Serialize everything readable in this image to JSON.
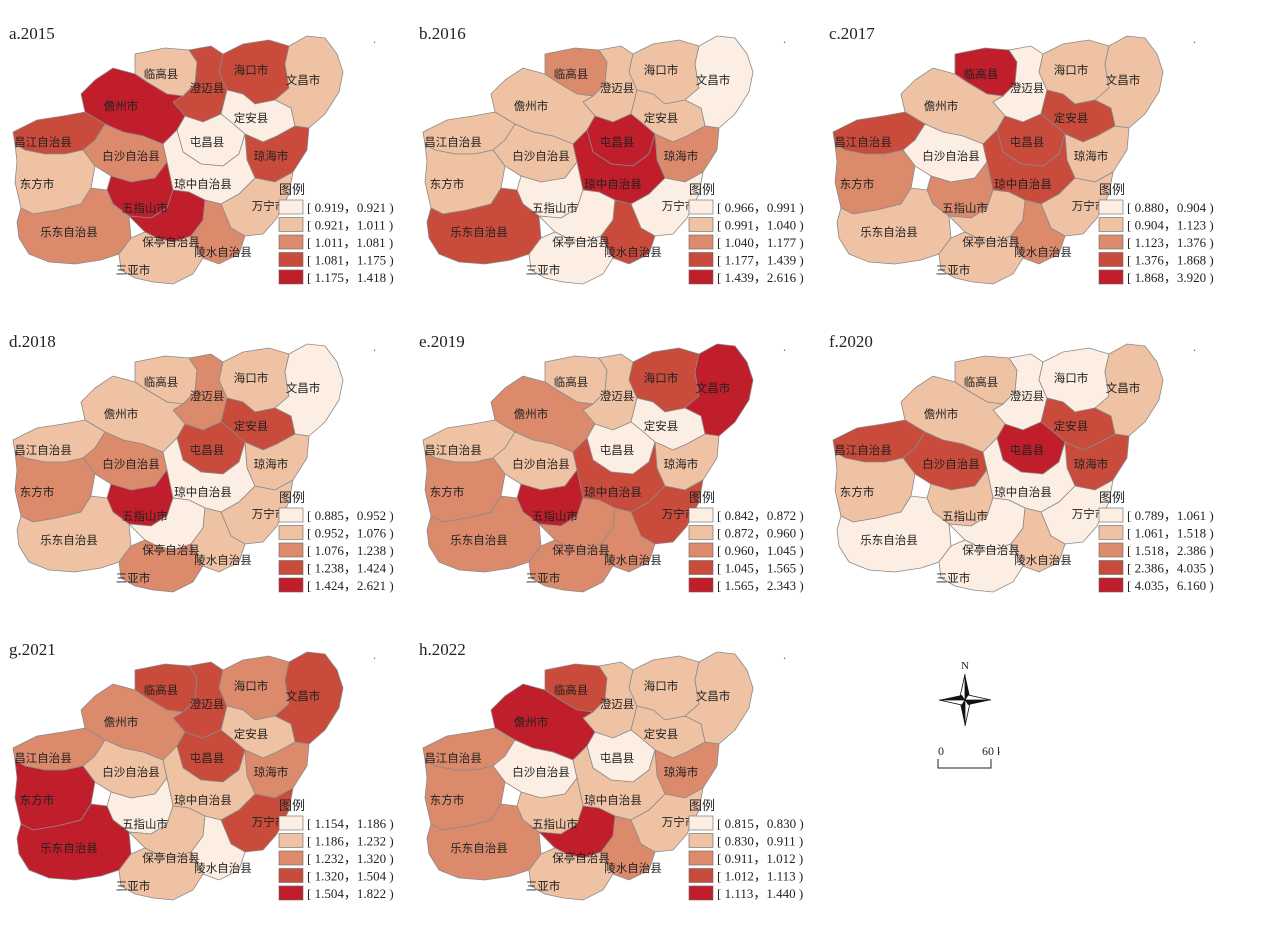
{
  "legend_title": "图例",
  "counties": [
    "临高县",
    "澄迈县",
    "海口市",
    "文昌市",
    "儋州市",
    "定安县",
    "屯昌县",
    "昌江自治县",
    "白沙自治县",
    "琼海市",
    "东方市",
    "琼中自治县",
    "五指山市",
    "万宁市",
    "乐东自治县",
    "保亭自治县",
    "陵水自治县",
    "三亚市"
  ],
  "palette": [
    "#fdeee3",
    "#f0c2a4",
    "#dc8a6c",
    "#c94b3b",
    "#bf1e2a"
  ],
  "panels": [
    {
      "title": "a.2015",
      "legend": [
        "[ 0.919，0.921 )",
        "[ 0.921，1.011 )",
        "[ 1.011，1.081 )",
        "[ 1.081，1.175 )",
        "[ 1.175，1.418 )"
      ],
      "classes": [
        1,
        3,
        3,
        1,
        4,
        0,
        0,
        3,
        2,
        3,
        1,
        0,
        4,
        1,
        2,
        4,
        2,
        1
      ]
    },
    {
      "title": "b.2016",
      "legend": [
        "[ 0.966，0.991 )",
        "[ 0.991，1.040 )",
        "[ 1.040，1.177 )",
        "[ 1.177，1.439 )",
        "[ 1.439，2.616 )"
      ],
      "classes": [
        2,
        1,
        1,
        0,
        1,
        1,
        4,
        1,
        1,
        2,
        1,
        4,
        0,
        0,
        3,
        0,
        3,
        0
      ]
    },
    {
      "title": "c.2017",
      "legend": [
        "[ 0.880，0.904 )",
        "[ 0.904，1.123 )",
        "[ 1.123，1.376 )",
        "[ 1.376，1.868 )",
        "[ 1.868，3.920 )"
      ],
      "classes": [
        4,
        0,
        1,
        1,
        1,
        3,
        3,
        3,
        0,
        1,
        2,
        3,
        2,
        1,
        1,
        1,
        2,
        1
      ]
    },
    {
      "title": "d.2018",
      "legend": [
        "[ 0.885，0.952 )",
        "[ 0.952，1.076 )",
        "[ 1.076，1.238 )",
        "[ 1.238，1.424 )",
        "[ 1.424，2.621 )"
      ],
      "classes": [
        1,
        2,
        1,
        0,
        1,
        3,
        3,
        1,
        2,
        1,
        2,
        0,
        4,
        1,
        1,
        0,
        1,
        2
      ]
    },
    {
      "title": "e.2019",
      "legend": [
        "[ 0.842，0.872 )",
        "[ 0.872，0.960 )",
        "[ 0.960，1.045 )",
        "[ 1.045，1.565 )",
        "[ 1.565，2.343 )"
      ],
      "classes": [
        1,
        1,
        3,
        4,
        2,
        0,
        0,
        1,
        1,
        1,
        2,
        3,
        4,
        3,
        2,
        2,
        2,
        2
      ]
    },
    {
      "title": "f.2020",
      "legend": [
        "[ 0.789，1.061 )",
        "[ 1.061，1.518 )",
        "[ 1.518，2.386 )",
        "[ 2.386，4.035 )",
        "[ 4.035，6.160 )"
      ],
      "classes": [
        1,
        0,
        0,
        1,
        1,
        3,
        4,
        3,
        3,
        3,
        1,
        0,
        1,
        0,
        0,
        0,
        1,
        0
      ]
    },
    {
      "title": "g.2021",
      "legend": [
        "[ 1.154，1.186 )",
        "[ 1.186，1.232 )",
        "[ 1.232，1.320 )",
        "[ 1.320，1.504 )",
        "[ 1.504，1.822 )"
      ],
      "classes": [
        3,
        3,
        2,
        3,
        2,
        1,
        3,
        2,
        1,
        2,
        4,
        1,
        0,
        3,
        4,
        1,
        0,
        1
      ]
    },
    {
      "title": "h.2022",
      "legend": [
        "[ 0.815，0.830 )",
        "[ 0.830，0.911 )",
        "[ 0.911，1.012 )",
        "[ 1.012，1.113 )",
        "[ 1.113，1.440 )"
      ],
      "classes": [
        3,
        1,
        1,
        1,
        4,
        1,
        0,
        2,
        0,
        2,
        2,
        1,
        1,
        1,
        2,
        4,
        2,
        1
      ]
    }
  ],
  "north_label": "N",
  "scale_label_start": "0",
  "scale_label_end": "60 km"
}
